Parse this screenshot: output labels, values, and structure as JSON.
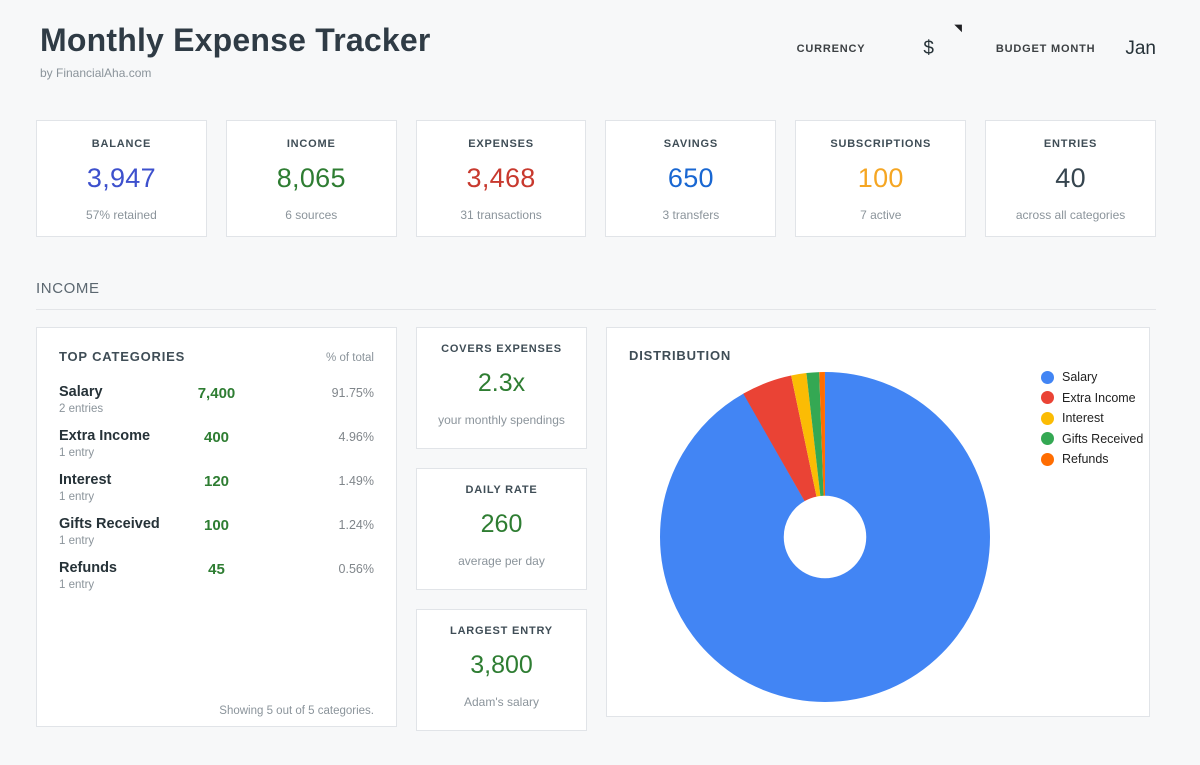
{
  "header": {
    "title": "Monthly Expense Tracker",
    "subtitle": "by FinancialAha.com",
    "currency_label": "CURRENCY",
    "currency_value": "$",
    "budget_month_label": "BUDGET MONTH",
    "budget_month_value": "Jan"
  },
  "stats": [
    {
      "label": "BALANCE",
      "value": "3,947",
      "sub": "57% retained",
      "color": "#3d50cd"
    },
    {
      "label": "INCOME",
      "value": "8,065",
      "sub": "6 sources",
      "color": "#2e7d32"
    },
    {
      "label": "EXPENSES",
      "value": "3,468",
      "sub": "31 transactions",
      "color": "#c8392e"
    },
    {
      "label": "SAVINGS",
      "value": "650",
      "sub": "3 transfers",
      "color": "#1967d2"
    },
    {
      "label": "SUBSCRIPTIONS",
      "value": "100",
      "sub": "7 active",
      "color": "#f5a623"
    },
    {
      "label": "ENTRIES",
      "value": "40",
      "sub": "across all categories",
      "color": "#36454f"
    }
  ],
  "section": {
    "title": "INCOME"
  },
  "top_categories": {
    "title": "TOP CATEGORIES",
    "col_header": "% of total",
    "value_color": "#2e7d32",
    "rows": [
      {
        "name": "Salary",
        "entries": "2 entries",
        "value": "7,400",
        "pct": "91.75%"
      },
      {
        "name": "Extra Income",
        "entries": "1 entry",
        "value": "400",
        "pct": "4.96%"
      },
      {
        "name": "Interest",
        "entries": "1 entry",
        "value": "120",
        "pct": "1.49%"
      },
      {
        "name": "Gifts Received",
        "entries": "1 entry",
        "value": "100",
        "pct": "1.24%"
      },
      {
        "name": "Refunds",
        "entries": "1 entry",
        "value": "45",
        "pct": "0.56%"
      }
    ],
    "footer": "Showing 5 out of 5 categories."
  },
  "kpis": [
    {
      "label": "COVERS EXPENSES",
      "value": "2.3x",
      "sub": "your monthly spendings",
      "color": "#2e7d32"
    },
    {
      "label": "DAILY RATE",
      "value": "260",
      "sub": "average per day",
      "color": "#2e7d32"
    },
    {
      "label": "LARGEST ENTRY",
      "value": "3,800",
      "sub": "Adam's salary",
      "color": "#2e7d32"
    }
  ],
  "distribution": {
    "title": "DISTRIBUTION"
  },
  "chart_data": {
    "type": "pie",
    "title": "DISTRIBUTION",
    "labels": [
      "Salary",
      "Extra Income",
      "Interest",
      "Gifts Received",
      "Refunds"
    ],
    "values": [
      7400,
      400,
      120,
      100,
      45
    ],
    "percents": [
      91.75,
      4.96,
      1.49,
      1.24,
      0.56
    ],
    "colors": [
      "#4285f4",
      "#ea4335",
      "#fbbc04",
      "#34a853",
      "#ff6d01"
    ],
    "donut_hole": 0.25,
    "start_angle_deg": 0,
    "direction": "clockwise",
    "legend_position": "right"
  }
}
